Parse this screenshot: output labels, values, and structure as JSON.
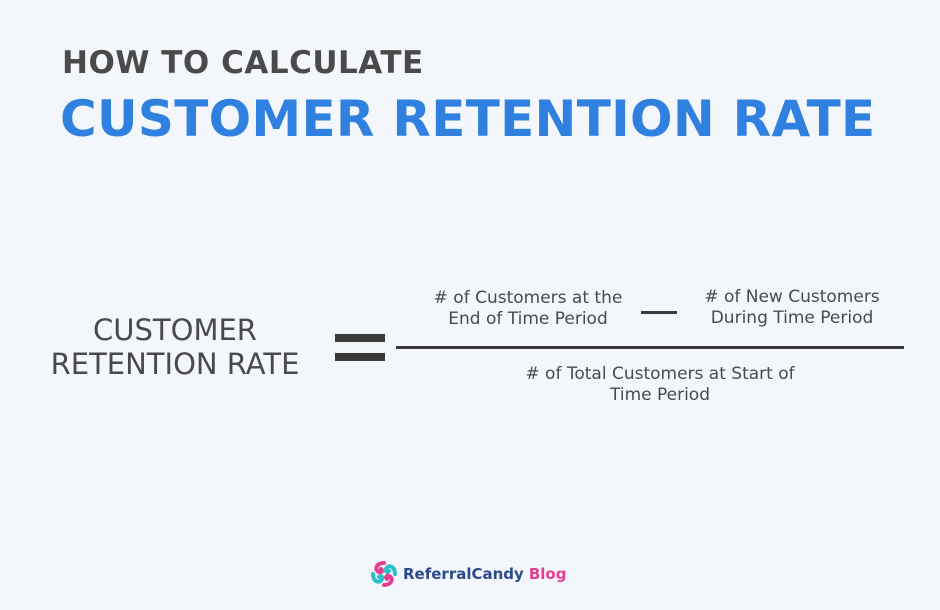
{
  "heading": {
    "line1": "HOW TO CALCULATE",
    "line2": "CUSTOMER RETENTION RATE"
  },
  "formula": {
    "lhs": [
      "CUSTOMER",
      "RETENTION RATE"
    ],
    "numerator_left": [
      "# of Customers at the",
      "End of Time Period"
    ],
    "numerator_right": [
      "# of New Customers",
      "During Time Period"
    ],
    "denominator": [
      "# of Total Customers at Start of",
      "Time Period"
    ]
  },
  "brand": {
    "name": "ReferralCandy",
    "suffix": "Blog",
    "logo_icon": "candy-swirl-icon"
  },
  "colors": {
    "background": "#f3f7fb",
    "heading_dark": "#4a4a4a",
    "heading_accent": "#2f80df",
    "brand_navy": "#2b4a8a",
    "brand_pink": "#e63f8f",
    "brand_teal": "#2bbfc9"
  }
}
